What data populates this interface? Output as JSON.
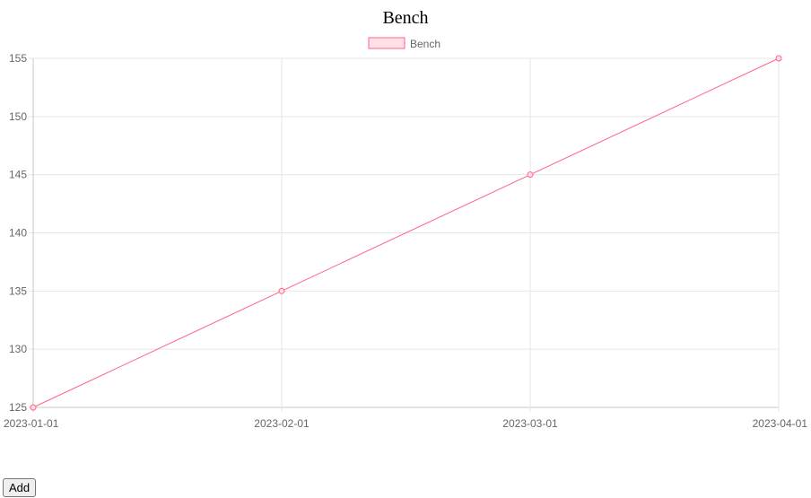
{
  "page": {
    "heading": "Bench"
  },
  "controls": {
    "add_label": "Add"
  },
  "chart_data": {
    "type": "line",
    "title": "",
    "xlabel": "",
    "ylabel": "",
    "x": [
      "2023-01-01",
      "2023-02-01",
      "2023-03-01",
      "2023-04-01"
    ],
    "series": [
      {
        "name": "Bench",
        "values": [
          125,
          135,
          145,
          155
        ],
        "color": "#ff6384",
        "fill": "#ffe0e6"
      }
    ],
    "ylim": [
      125,
      155
    ],
    "yticks": [
      125,
      130,
      135,
      140,
      145,
      150,
      155
    ],
    "grid": true,
    "legend": "top-center"
  }
}
